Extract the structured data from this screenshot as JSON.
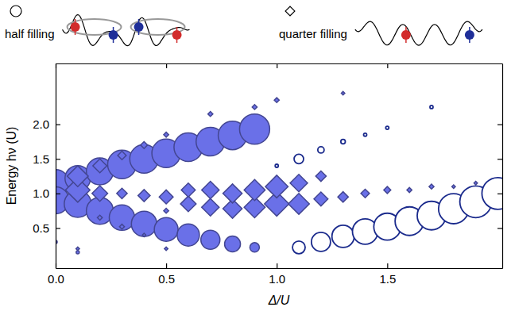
{
  "chart_data": {
    "type": "scatter",
    "x_label": "Δ/U",
    "y_label": "Energy hν (U)",
    "xlim": [
      0,
      2.02
    ],
    "ylim": [
      -0.08,
      2.88
    ],
    "xticks": [
      {
        "value": 0,
        "label": "0.0"
      },
      0.5,
      {
        "value": 1,
        "label": "1.0"
      },
      1.5
    ],
    "yticks": [
      0.5,
      {
        "value": 1,
        "label": "1.0"
      },
      1.5,
      {
        "value": 2,
        "label": "2.0"
      }
    ],
    "legend": "top",
    "series": [
      {
        "name": "half filling",
        "marker": "circle",
        "color": "#6a70e8",
        "x": [
          0,
          0,
          0.1,
          0.1,
          0.2,
          0.2,
          0.3,
          0.3,
          0.4,
          0.4,
          0.5,
          0.5,
          0.6,
          0.6,
          0.7,
          0.7,
          0.8,
          0.8,
          0.9,
          0.9,
          0.1,
          0
        ],
        "values": [
          1.15,
          0.9,
          1.22,
          0.85,
          1.32,
          0.75,
          1.42,
          0.65,
          1.5,
          0.56,
          1.58,
          0.48,
          1.67,
          0.4,
          1.75,
          0.33,
          1.84,
          0.27,
          1.93,
          0.22,
          0.15,
          0.3
        ],
        "sizes": [
          72,
          72,
          64,
          72,
          72,
          72,
          81,
          64,
          81,
          64,
          81,
          56,
          81,
          49,
          81,
          36,
          81,
          25,
          90,
          9,
          1,
          1
        ]
      },
      {
        "marker": "circle-open",
        "color": "#1a2a8c",
        "x": [
          1.1,
          1.2,
          1.3,
          1.4,
          1.5,
          1.6,
          1.7,
          1.8,
          1.9,
          2.0,
          1.0,
          1.1,
          1.2,
          1.3,
          1.4,
          1.5,
          1.7
        ],
        "values": [
          0.22,
          0.3,
          0.38,
          0.45,
          0.52,
          0.6,
          0.68,
          0.78,
          0.88,
          1.0,
          1.4,
          1.5,
          1.63,
          1.75,
          1.85,
          1.95,
          2.25
        ],
        "sizes": [
          16,
          36,
          49,
          64,
          72,
          81,
          81,
          90,
          100,
          100,
          1,
          9,
          4,
          2,
          1,
          1,
          1
        ]
      },
      {
        "name": "quarter filling",
        "marker": "diamond",
        "color": "#6a70e8",
        "x": [
          0.1,
          0.1,
          0.2,
          0.2,
          0.3,
          0.3,
          0.4,
          0.4,
          0.5,
          0.5,
          0.6,
          0.6,
          0.7,
          0.7,
          0.8,
          0.8,
          0.9,
          0.9,
          1.0,
          1.0,
          1.1,
          1.1,
          1.2,
          1.2,
          1.3,
          1.4,
          1.5,
          1.6,
          1.7,
          1.8,
          1.9,
          0.2,
          0.3,
          0.4,
          0.5,
          0.7,
          0.9,
          1.0,
          1.3,
          0.1,
          0.5
        ],
        "values": [
          1.05,
          1.25,
          1.0,
          1.4,
          1.0,
          1.55,
          0.97,
          1.7,
          0.95,
          1.85,
          0.85,
          1.05,
          0.8,
          1.05,
          0.78,
          1.0,
          0.8,
          1.05,
          0.85,
          1.1,
          0.85,
          1.15,
          0.92,
          1.25,
          0.95,
          1.0,
          1.05,
          1.05,
          1.1,
          1.1,
          1.15,
          0.65,
          0.52,
          0.4,
          0.75,
          2.15,
          2.25,
          2.35,
          2.45,
          0.2,
          0.2
        ],
        "sizes": [
          49,
          36,
          20,
          16,
          9,
          6,
          12,
          4,
          16,
          2,
          20,
          16,
          25,
          25,
          30,
          30,
          36,
          36,
          49,
          42,
          36,
          25,
          16,
          9,
          9,
          6,
          4,
          2,
          2,
          1,
          1,
          2,
          2,
          1,
          2,
          2,
          2,
          2,
          1,
          1,
          1
        ]
      }
    ]
  }
}
